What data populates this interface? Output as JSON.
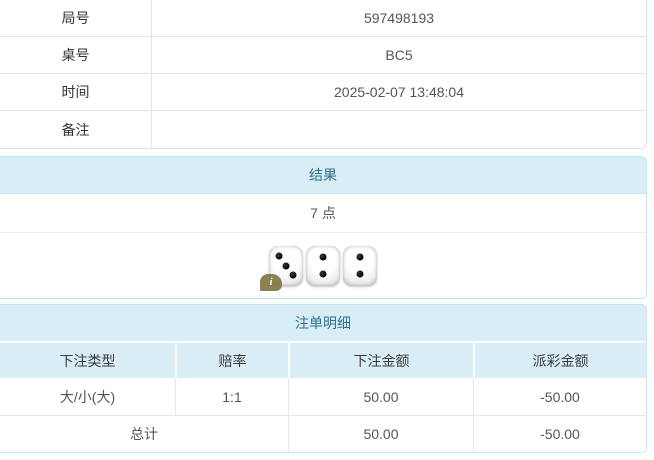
{
  "info_table": {
    "rows": [
      {
        "label": "局号",
        "value": "597498193"
      },
      {
        "label": "桌号",
        "value": "BC5"
      },
      {
        "label": "时间",
        "value": "2025-02-07 13:48:04"
      },
      {
        "label": "备注",
        "value": ""
      }
    ]
  },
  "result_panel": {
    "title": "结果",
    "points": "7 点",
    "dice": [
      3,
      2,
      2
    ],
    "info_badge": "i"
  },
  "bets_panel": {
    "title": "注单明细",
    "columns": [
      "下注类型",
      "赔率",
      "下注金额",
      "派彩金额"
    ],
    "rows": [
      {
        "type": "大/小(大)",
        "odds": "1:1",
        "amount": "50.00",
        "payout": "-50.00"
      }
    ],
    "total": {
      "label": "总计",
      "amount": "50.00",
      "payout": "-50.00"
    }
  },
  "colors": {
    "accent_bg": "#d9edf7",
    "accent_text": "#31708f",
    "panel_border": "#bce8f1",
    "negative_text": "#e4393c"
  }
}
